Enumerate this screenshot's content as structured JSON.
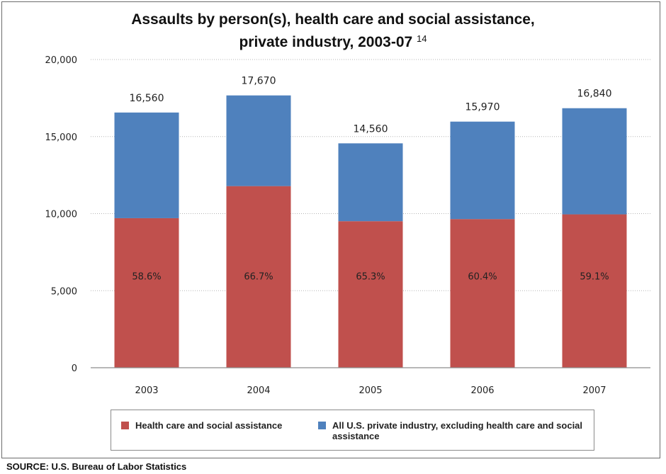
{
  "title": {
    "line1": "Assaults by person(s), health care and social assistance,",
    "line2": "private industry, 2003-07",
    "footnote": "14"
  },
  "legend": {
    "items": [
      {
        "label": "Health care and social assistance",
        "color": "#c0504d"
      },
      {
        "label": "All U.S. private industry, excluding health care and social assistance",
        "color": "#4f81bd"
      }
    ]
  },
  "source": "SOURCE: U.S. Bureau of Labor Statistics",
  "chart_data": {
    "type": "bar",
    "stacked": true,
    "categories": [
      "2003",
      "2004",
      "2005",
      "2006",
      "2007"
    ],
    "series": [
      {
        "name": "Health care and social assistance",
        "color": "#c0504d",
        "values": [
          9704,
          11786,
          9508,
          9646,
          9952
        ],
        "labels": [
          "58.6%",
          "66.7%",
          "65.3%",
          "60.4%",
          "59.1%"
        ]
      },
      {
        "name": "All U.S. private industry, excluding health care and social assistance",
        "color": "#4f81bd",
        "values": [
          6856,
          5884,
          5052,
          6324,
          6888
        ]
      }
    ],
    "totals": [
      16560,
      17670,
      14560,
      15970,
      16840
    ],
    "total_labels": [
      "16,560",
      "17,670",
      "14,560",
      "15,970",
      "16,840"
    ],
    "ylim": [
      0,
      20000
    ],
    "yticks": [
      0,
      5000,
      10000,
      15000,
      20000
    ],
    "ytick_labels": [
      "0",
      "5,000",
      "10,000",
      "15,000",
      "20,000"
    ],
    "grid": true,
    "legend_position": "bottom"
  }
}
